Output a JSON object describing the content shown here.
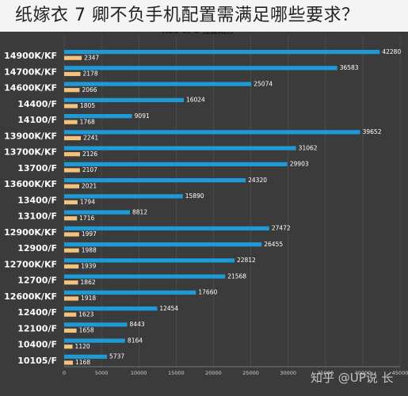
{
  "banner": {
    "text": "纸嫁衣 7 卿不负手机配置需满足哪些要求？"
  },
  "chart_header": "R23 CPU 性能跑分",
  "watermark": "知乎 @UP说 长",
  "colors": {
    "background": "#3b3b3b",
    "multi_core": "#1e9bd7",
    "single_core": "#f4c27f",
    "grid": "#555555"
  },
  "chart_data": {
    "type": "bar",
    "orientation": "horizontal",
    "title": "R23 CPU 性能跑分",
    "categories": [
      "14900K/KF",
      "14700K/KF",
      "14600K/KF",
      "14400/F",
      "14100/F",
      "13900K/KF",
      "13700K/KF",
      "13700/F",
      "13600K/KF",
      "13400/F",
      "13100/F",
      "12900K/KF",
      "12900/F",
      "12700K/KF",
      "12700/F",
      "12600K/KF",
      "12400/F",
      "12100/F",
      "10400/F",
      "10105/F"
    ],
    "series": [
      {
        "values": [
          42280,
          36583,
          25074,
          16024,
          9091,
          39652,
          31062,
          29903,
          24320,
          15890,
          8812,
          27472,
          26455,
          22812,
          21568,
          17660,
          12454,
          8443,
          8164,
          5737
        ]
      },
      {
        "values": [
          2347,
          2178,
          2066,
          1805,
          1768,
          2241,
          2126,
          2107,
          2021,
          1794,
          1716,
          1997,
          1988,
          1939,
          1862,
          1918,
          1623,
          1658,
          1120,
          1168
        ]
      }
    ],
    "xticks": [
      0,
      5000,
      10000,
      15000,
      20000,
      25000,
      30000,
      35000,
      40000,
      45000
    ],
    "xlim": [
      0,
      45000
    ],
    "grid": true
  }
}
